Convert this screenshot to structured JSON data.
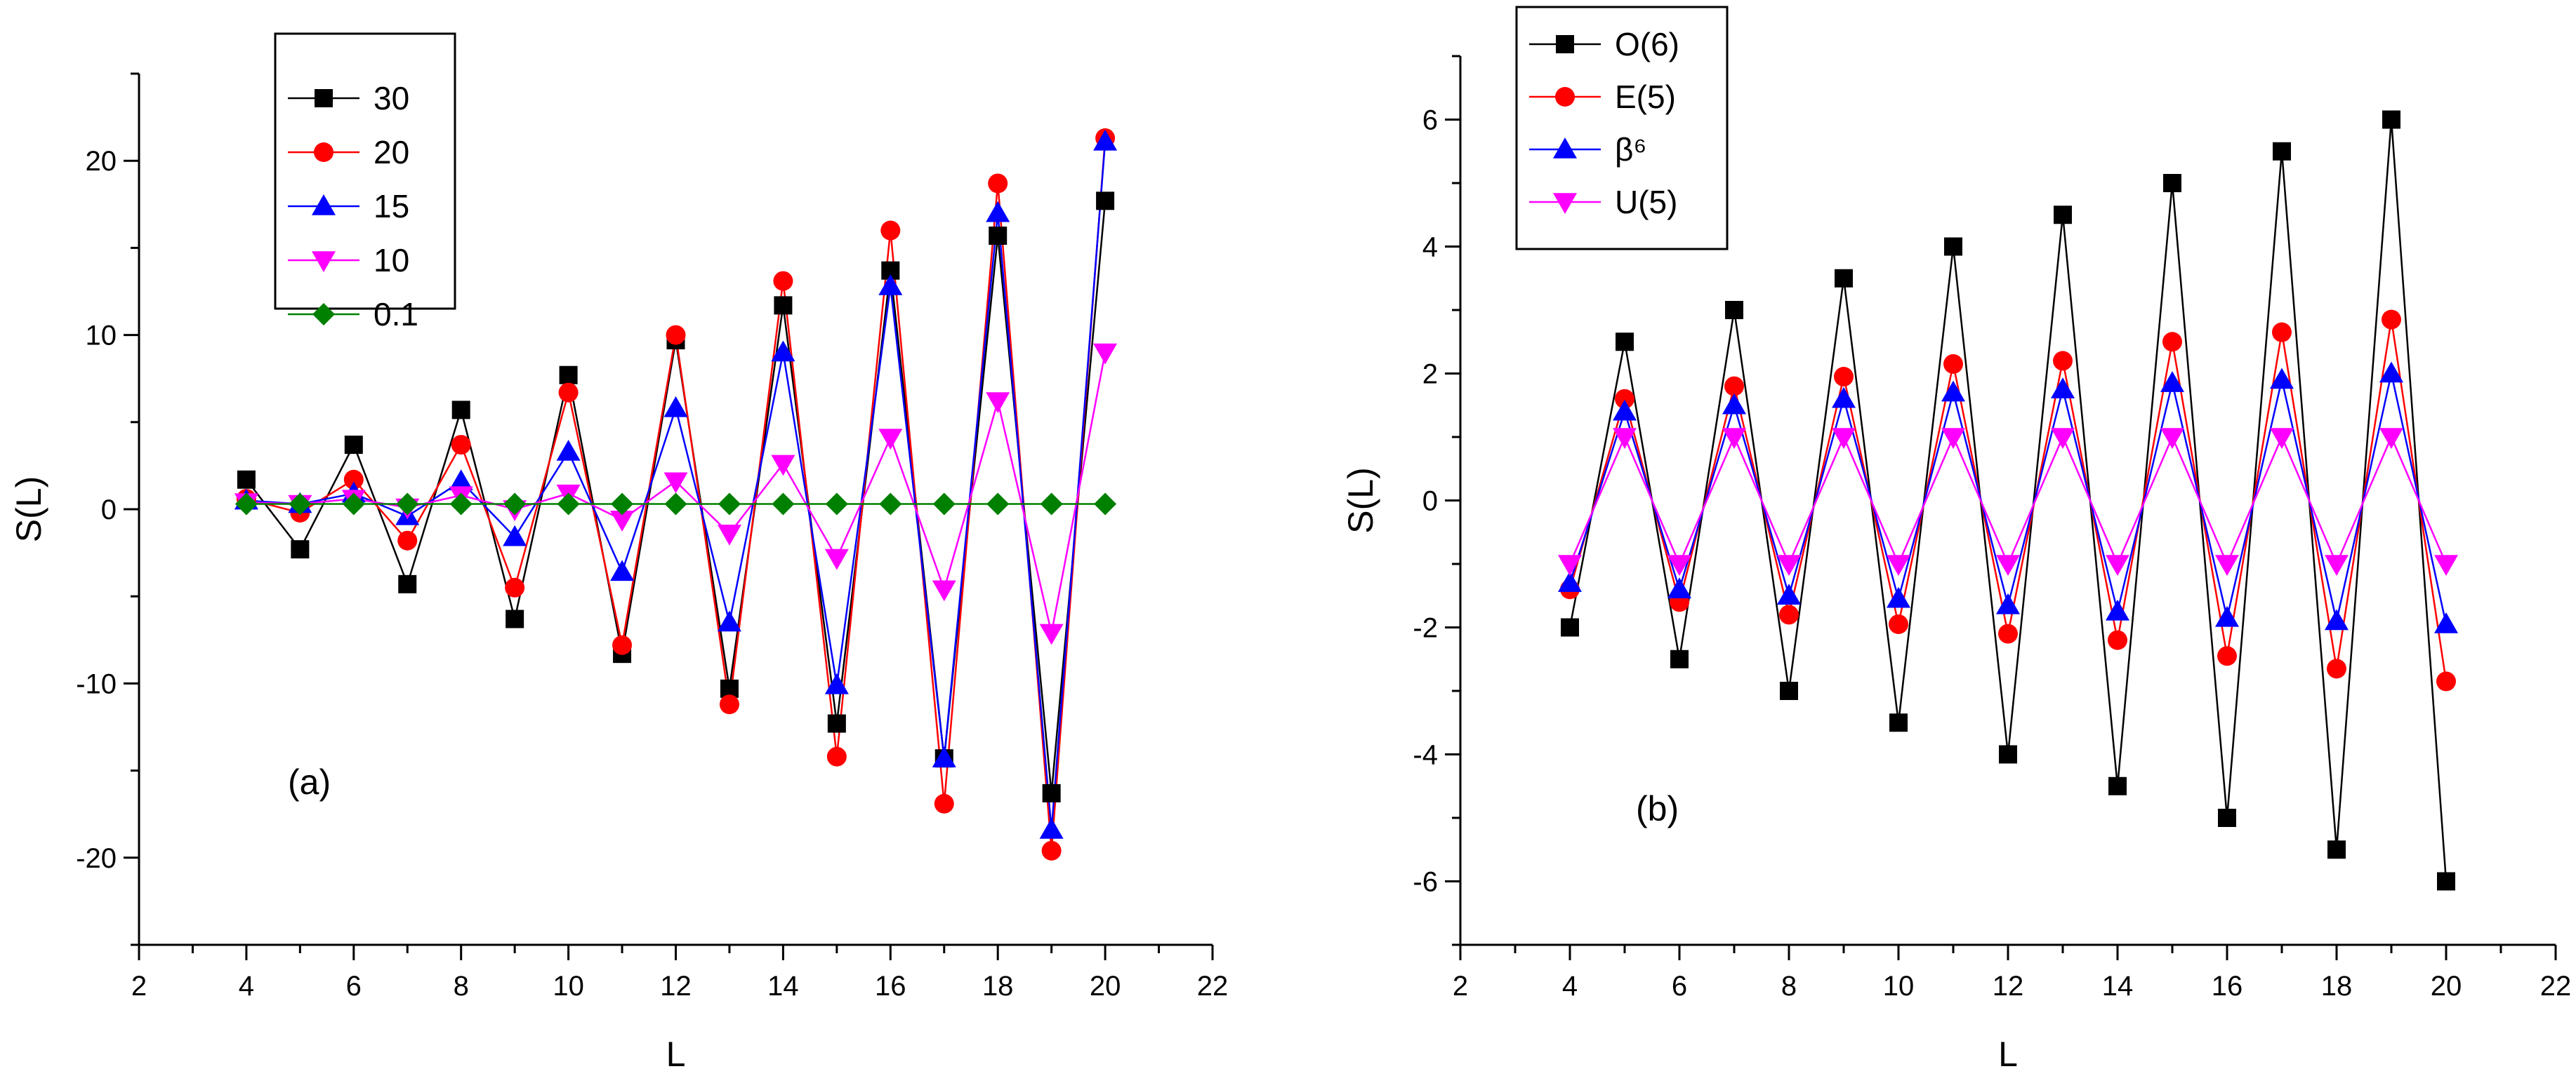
{
  "chart_data": [
    {
      "type": "line",
      "panel_label": "(a)",
      "xlabel": "L",
      "ylabel": "S(L)",
      "xlim": [
        2,
        22
      ],
      "ylim": [
        -25,
        25
      ],
      "xticks": [
        2,
        4,
        6,
        8,
        10,
        12,
        14,
        16,
        18,
        20,
        22
      ],
      "yticks": [
        -20,
        -10,
        0,
        10,
        20
      ],
      "xtick_labels": [
        "2",
        "4",
        "6",
        "8",
        "10",
        "12",
        "14",
        "16",
        "18",
        "20",
        "22"
      ],
      "ytick_labels": [
        "-20",
        "-10",
        "0",
        "10",
        "20"
      ],
      "legend_position": "top-left",
      "x": [
        4,
        5,
        6,
        7,
        8,
        9,
        10,
        11,
        12,
        13,
        14,
        15,
        16,
        17,
        18,
        19,
        20
      ],
      "series": [
        {
          "name": "30",
          "color": "#000000",
          "marker": "square",
          "values": [
            1.7,
            -2.3,
            3.7,
            -4.3,
            5.7,
            -6.3,
            7.7,
            -8.3,
            9.7,
            -10.3,
            11.7,
            -12.3,
            13.7,
            -14.3,
            15.7,
            -16.3,
            17.7
          ]
        },
        {
          "name": "20",
          "color": "#ff0000",
          "marker": "circle",
          "values": [
            0.6,
            -0.2,
            1.7,
            -1.8,
            3.7,
            -4.5,
            6.7,
            -7.8,
            10.0,
            -11.2,
            13.1,
            -14.2,
            16.0,
            -16.9,
            18.7,
            -19.6,
            21.3
          ]
        },
        {
          "name": "15",
          "color": "#0000ff",
          "marker": "triangle-up",
          "values": [
            0.5,
            0.3,
            0.9,
            -0.4,
            1.6,
            -1.6,
            3.3,
            -3.6,
            5.8,
            -6.5,
            9.0,
            -10.1,
            12.8,
            -14.3,
            17.0,
            -18.4,
            21.1
          ]
        },
        {
          "name": "10",
          "color": "#ff00ff",
          "marker": "triangle-down",
          "values": [
            0.4,
            0.3,
            0.6,
            0.1,
            0.8,
            0.0,
            0.9,
            -0.6,
            1.6,
            -1.4,
            2.6,
            -2.8,
            4.1,
            -4.6,
            6.2,
            -7.1,
            9.0
          ]
        },
        {
          "name": "0.1",
          "color": "#008000",
          "marker": "diamond",
          "values": [
            0.3,
            0.3,
            0.3,
            0.3,
            0.3,
            0.3,
            0.3,
            0.3,
            0.3,
            0.3,
            0.3,
            0.3,
            0.3,
            0.3,
            0.3,
            0.3,
            0.3
          ]
        }
      ]
    },
    {
      "type": "line",
      "panel_label": "(b)",
      "xlabel": "L",
      "ylabel": "S(L)",
      "xlim": [
        2,
        22
      ],
      "ylim": [
        -7,
        7
      ],
      "xticks": [
        2,
        4,
        6,
        8,
        10,
        12,
        14,
        16,
        18,
        20,
        22
      ],
      "yticks": [
        -6,
        -4,
        -2,
        0,
        2,
        4,
        6
      ],
      "xtick_labels": [
        "2",
        "4",
        "6",
        "8",
        "10",
        "12",
        "14",
        "16",
        "18",
        "20",
        "22"
      ],
      "ytick_labels": [
        "-6",
        "-4",
        "-2",
        "0",
        "2",
        "4",
        "6"
      ],
      "legend_position": "top-left",
      "x": [
        4,
        5,
        6,
        7,
        8,
        9,
        10,
        11,
        12,
        13,
        14,
        15,
        16,
        17,
        18,
        19,
        20
      ],
      "series": [
        {
          "name": "O(6)",
          "color": "#000000",
          "marker": "square",
          "values": [
            -2.0,
            2.5,
            -2.5,
            3.0,
            -3.0,
            3.5,
            -3.5,
            4.0,
            -4.0,
            4.5,
            -4.5,
            5.0,
            -5.0,
            5.5,
            -5.5,
            6.0,
            -6.0
          ]
        },
        {
          "name": "E(5)",
          "color": "#ff0000",
          "marker": "circle",
          "values": [
            -1.4,
            1.6,
            -1.6,
            1.8,
            -1.8,
            1.95,
            -1.95,
            2.15,
            -2.1,
            2.2,
            -2.2,
            2.5,
            -2.45,
            2.65,
            -2.65,
            2.85,
            -2.85
          ]
        },
        {
          "name": "β⁶",
          "color": "#0000ff",
          "marker": "triangle-up",
          "values": [
            -1.3,
            1.4,
            -1.4,
            1.5,
            -1.5,
            1.6,
            -1.55,
            1.7,
            -1.65,
            1.75,
            -1.75,
            1.85,
            -1.85,
            1.9,
            -1.9,
            2.0,
            -1.95
          ]
        },
        {
          "name": "U(5)",
          "color": "#ff00ff",
          "marker": "triangle-down",
          "values": [
            -1.0,
            1.0,
            -1.0,
            1.0,
            -1.0,
            1.0,
            -1.0,
            1.0,
            -1.0,
            1.0,
            -1.0,
            1.0,
            -1.0,
            1.0,
            -1.0,
            1.0,
            -1.0
          ]
        }
      ]
    }
  ]
}
